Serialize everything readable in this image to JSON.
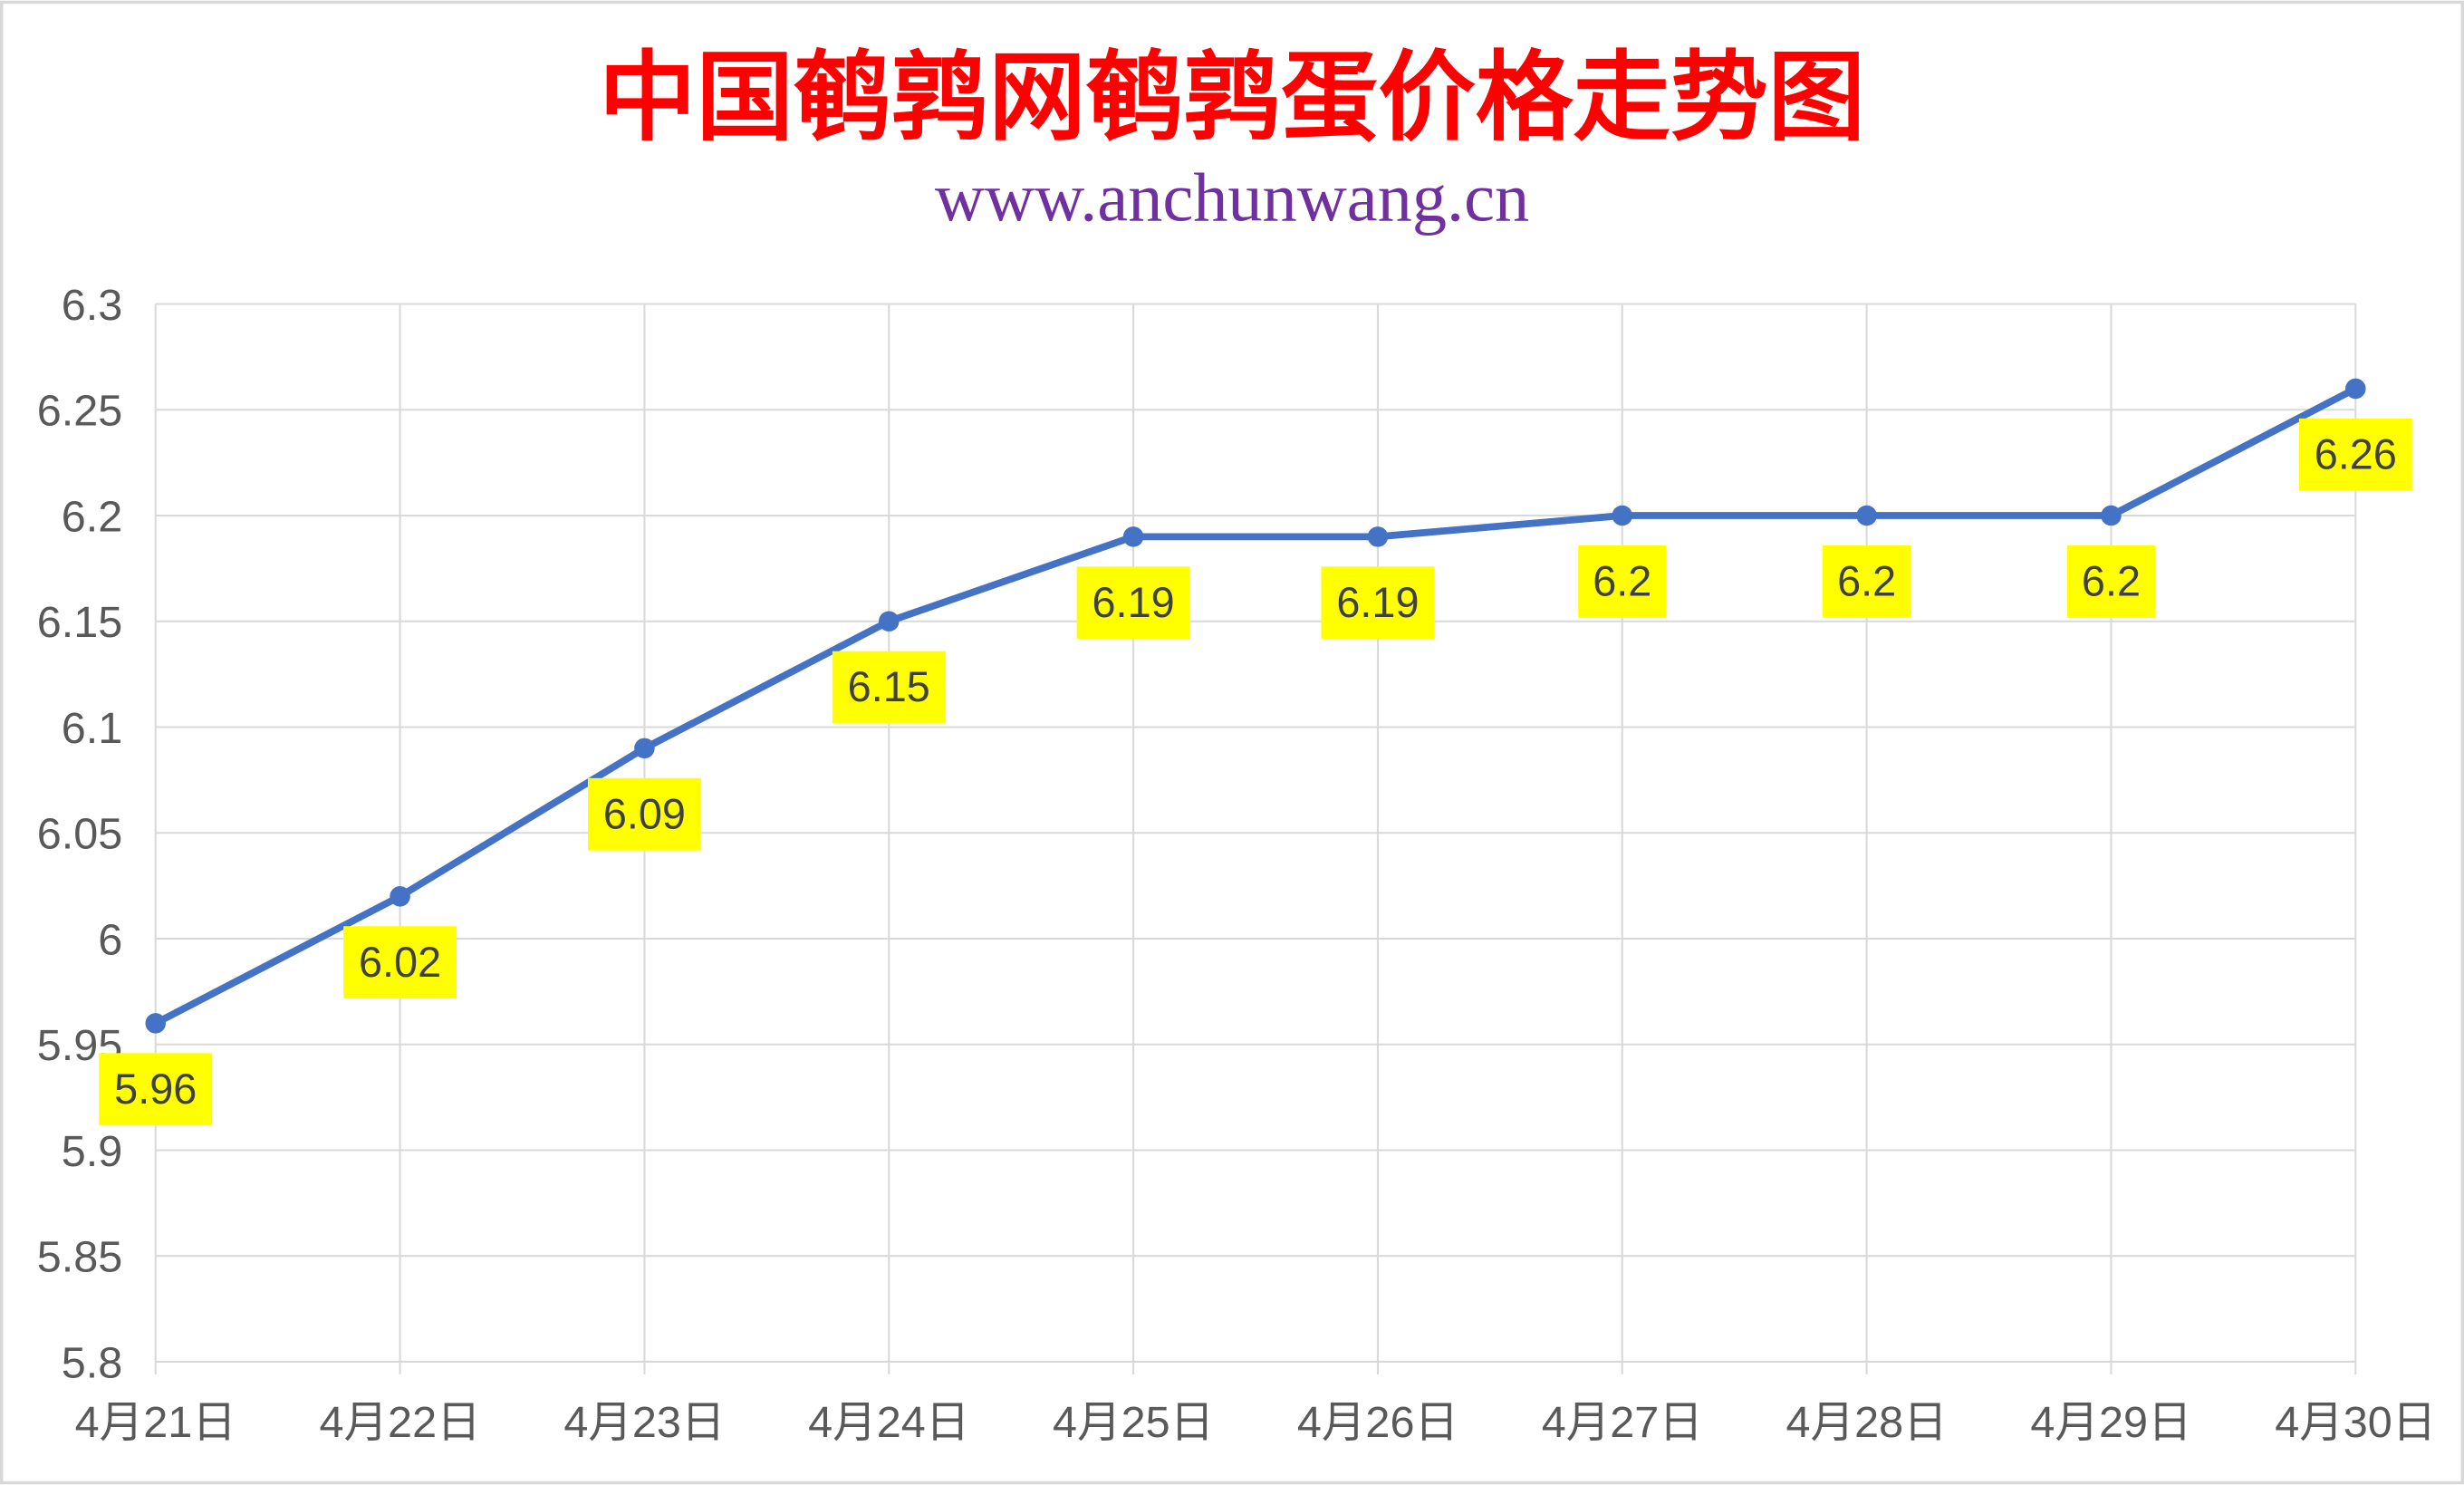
{
  "chart_data": {
    "type": "line",
    "title": "中国鹌鹑网鹌鹑蛋价格走势图",
    "subtitle": "www.anchunwang.cn",
    "categories": [
      "4月21日",
      "4月22日",
      "4月23日",
      "4月24日",
      "4月25日",
      "4月26日",
      "4月27日",
      "4月28日",
      "4月29日",
      "4月30日"
    ],
    "series": [
      {
        "values": [
          5.96,
          6.02,
          6.09,
          6.15,
          6.19,
          6.19,
          6.2,
          6.2,
          6.2,
          6.26
        ]
      }
    ],
    "data_labels": [
      "5.96",
      "6.02",
      "6.09",
      "6.15",
      "6.19",
      "6.19",
      "6.2",
      "6.2",
      "6.2",
      "6.26"
    ],
    "ylim": [
      5.8,
      6.3
    ],
    "yticks": [
      "5.8",
      "5.85",
      "5.9",
      "5.95",
      "6",
      "6.05",
      "6.1",
      "6.15",
      "6.2",
      "6.25",
      "6.3"
    ],
    "xlabel": "",
    "ylabel": "",
    "grid": true,
    "legend": "none",
    "colors": {
      "title": "#FF0000",
      "subtitle": "#7030A0",
      "line": "#4472C4",
      "label_bg": "#FFFF00",
      "grid": "#D9D9D9"
    }
  }
}
